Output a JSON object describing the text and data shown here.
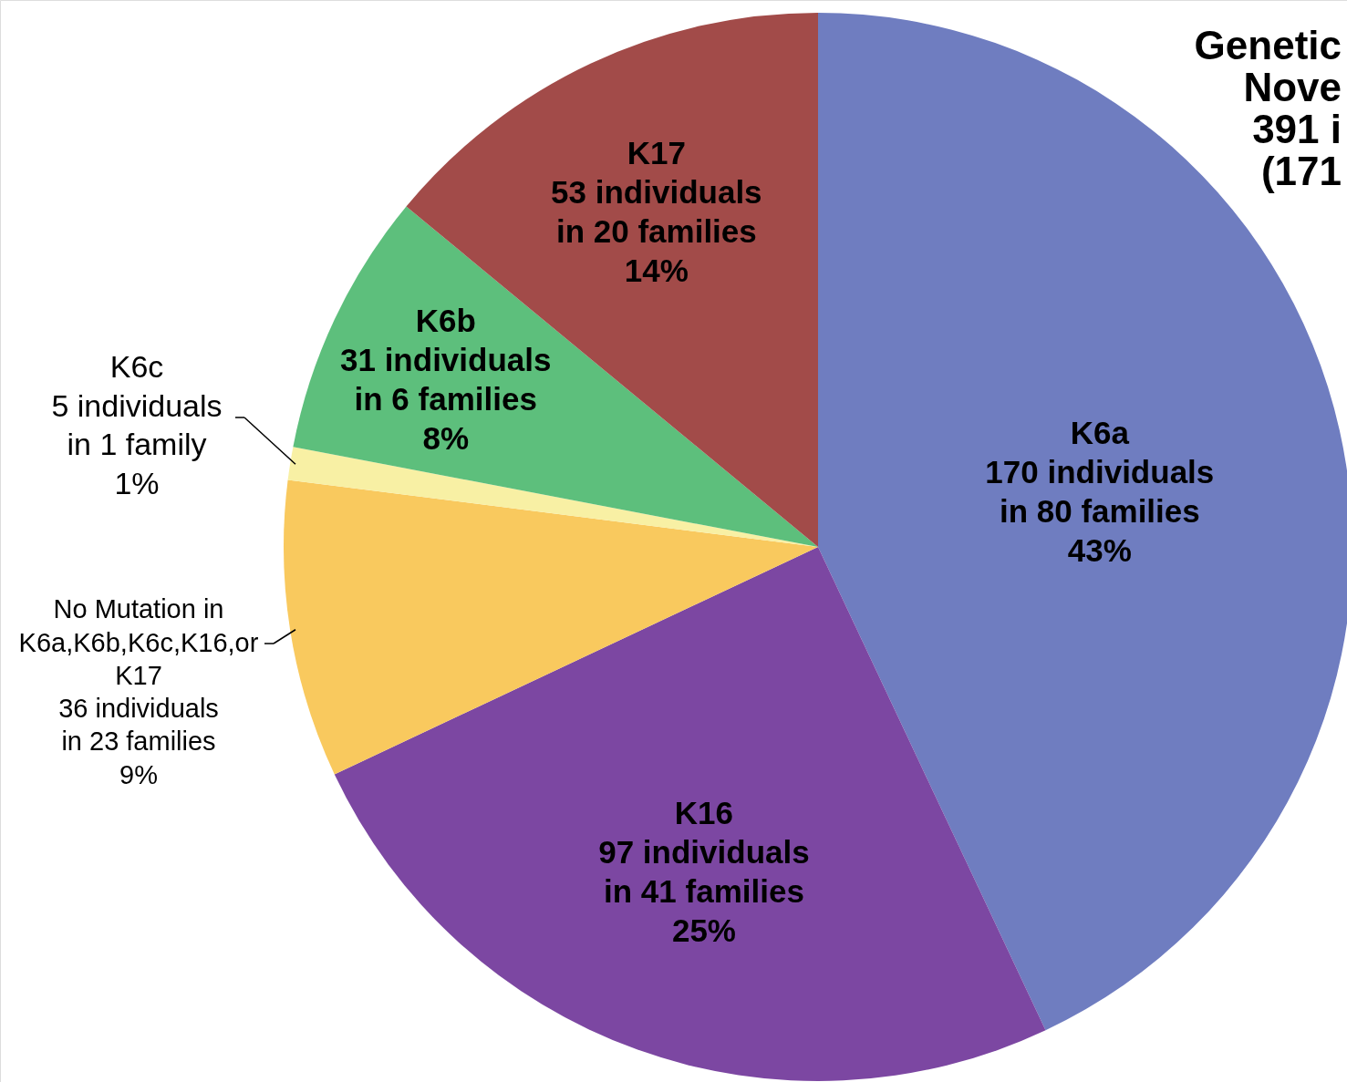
{
  "chart_data": {
    "type": "pie",
    "title": "Genetic\nNove\n391 i\n(171",
    "categories": [
      "K6a",
      "K16",
      "No Mutation in\nK6a,K6b,K6c,K16,or\nK17",
      "K6c",
      "K6b",
      "K17"
    ],
    "values": [
      43,
      25,
      9,
      1,
      8,
      14
    ],
    "colors": [
      "#6f7dc0",
      "#7c47a2",
      "#f9c95e",
      "#f8f0a4",
      "#5dbf7c",
      "#a24b49"
    ],
    "value_labels": [
      "170 individuals\nin 80 families\n43%",
      "97 individuals\nin 41 families\n25%",
      "36 individuals\nin 23 families\n9%",
      "5 individuals\nin 1 family\n1%",
      "31 individuals\nin 6 families\n8%",
      "53 individuals\nin 20 families\n14%"
    ],
    "legend": false
  }
}
